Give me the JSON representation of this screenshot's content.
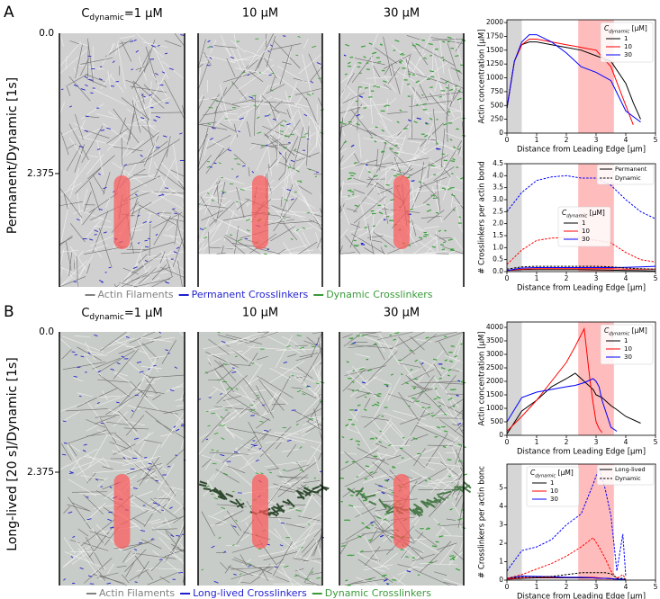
{
  "panels": [
    {
      "label": "A",
      "row_label": "Permanent/Dynamic [1s]",
      "yticks": [
        "0.0",
        "2.375"
      ],
      "columns": [
        {
          "text": "C",
          "sub": "dynamic",
          "rest": "=1 μM"
        },
        {
          "text": "10 μM"
        },
        {
          "text": "30 μM"
        }
      ],
      "legend": [
        {
          "text": "Actin Filaments",
          "color": "#808080"
        },
        {
          "text": "Permanent Crosslinkers",
          "color": "#1f1fd0"
        },
        {
          "text": "Dynamic Crosslinkers",
          "color": "#3a9a3a"
        }
      ]
    },
    {
      "label": "B",
      "row_label": "Long-lived [20 s]/Dynamic [1s]",
      "yticks": [
        "0.0",
        "2.375"
      ],
      "columns": [
        {
          "text": "C",
          "sub": "dynamic",
          "rest": "=1 μM"
        },
        {
          "text": "10 μM"
        },
        {
          "text": "30 μM"
        }
      ],
      "legend": [
        {
          "text": "Actin Filaments",
          "color": "#808080"
        },
        {
          "text": "Long-lived Crosslinkers",
          "color": "#1f1fd0"
        },
        {
          "text": "Dynamic Crosslinkers",
          "color": "#3a9a3a"
        }
      ]
    }
  ],
  "chart_data": [
    {
      "type": "line",
      "xlabel": "Distance from Leading Edge [μm]",
      "ylabel": "Actin concentration [μM]",
      "legend_title": {
        "text": "C",
        "sub": "dynamic",
        "rest": " [μM]"
      },
      "legend_loc": "upper right",
      "xlim": [
        0,
        5
      ],
      "xticks": [
        0,
        1,
        2,
        3,
        4,
        5
      ],
      "ylim": [
        0,
        2050
      ],
      "yticks": [
        0,
        250,
        500,
        750,
        1000,
        1250,
        1500,
        1750,
        2000
      ],
      "shaded": [
        {
          "x": [
            0,
            0.5
          ],
          "color": "#cfcfcf"
        },
        {
          "x": [
            2.4,
            3.6
          ],
          "color": "#ffb0b0"
        }
      ],
      "x": [
        0,
        0.25,
        0.5,
        0.75,
        1,
        1.5,
        2,
        2.5,
        3,
        3.5,
        4,
        4.25,
        4.5
      ],
      "series": [
        {
          "name": "1",
          "color": "#000000",
          "values": [
            450,
            1300,
            1600,
            1650,
            1650,
            1600,
            1550,
            1500,
            1400,
            1300,
            900,
            550,
            250
          ]
        },
        {
          "name": "10",
          "color": "#ff0000",
          "values": [
            450,
            1300,
            1600,
            1700,
            1700,
            1650,
            1600,
            1550,
            1500,
            1200,
            500,
            150,
            null
          ]
        },
        {
          "name": "30",
          "color": "#0000ff",
          "values": [
            450,
            1300,
            1650,
            1780,
            1780,
            1650,
            1450,
            1200,
            1100,
            950,
            400,
            300,
            200
          ]
        }
      ]
    },
    {
      "type": "line",
      "xlabel": "Distance from Leading Edge [μm]",
      "ylabel": "# Crosslinkers per actin bond",
      "legend_title": {
        "text": "C",
        "sub": "dynamic",
        "rest": " [μM]"
      },
      "legend_loc": "center right",
      "style_legend": [
        "Permanent",
        "Dynamic"
      ],
      "xlim": [
        0,
        5
      ],
      "xticks": [
        0,
        1,
        2,
        3,
        4,
        5
      ],
      "ylim": [
        0,
        4.5
      ],
      "yticks": [
        {
          "value": 0,
          "label": "0.0"
        },
        0.5,
        {
          "value": 1,
          "label": "1.0"
        },
        1.5,
        {
          "value": 2,
          "label": "2.0"
        },
        2.5,
        {
          "value": 3,
          "label": "3.0"
        },
        3.5,
        {
          "value": 4,
          "label": "4.0"
        },
        4.5
      ],
      "shaded": [
        {
          "x": [
            0,
            0.5
          ],
          "color": "#cfcfcf"
        },
        {
          "x": [
            2.4,
            3.6
          ],
          "color": "#ffb0b0"
        }
      ],
      "x": [
        0,
        0.5,
        1,
        1.5,
        2,
        2.5,
        3,
        3.5,
        4,
        4.5,
        5
      ],
      "series": [
        {
          "name": "1",
          "color": "#000000",
          "dash": false,
          "values": [
            0.05,
            0.08,
            0.08,
            0.08,
            0.08,
            0.08,
            0.07,
            0.06,
            0.05,
            0.04,
            0.03
          ]
        },
        {
          "name": "10",
          "color": "#ff0000",
          "dash": false,
          "values": [
            0.05,
            0.1,
            0.12,
            0.12,
            0.12,
            0.12,
            0.12,
            0.12,
            0.1,
            0.1,
            0.1
          ]
        },
        {
          "name": "30",
          "color": "#0000ff",
          "dash": false,
          "values": [
            0.05,
            0.15,
            0.17,
            0.17,
            0.17,
            0.17,
            0.17,
            0.17,
            0.18,
            0.2,
            0.22
          ]
        },
        {
          "name": "1",
          "color": "#000000",
          "dash": true,
          "values": [
            0.1,
            0.2,
            0.22,
            0.22,
            0.22,
            0.22,
            0.22,
            0.2,
            0.15,
            0.12,
            0.1
          ]
        },
        {
          "name": "10",
          "color": "#ff0000",
          "dash": true,
          "values": [
            0.3,
            0.9,
            1.3,
            1.4,
            1.42,
            1.4,
            1.3,
            1.2,
            0.8,
            0.5,
            0.4
          ]
        },
        {
          "name": "30",
          "color": "#0000ff",
          "dash": true,
          "values": [
            2.5,
            3.3,
            3.8,
            3.95,
            4.0,
            3.9,
            3.9,
            3.6,
            3.0,
            2.5,
            2.2
          ]
        }
      ]
    },
    {
      "type": "line",
      "xlabel": "Distance from Leading Edge [μm]",
      "ylabel": "Actin concentration [μM]",
      "legend_title": {
        "text": "C",
        "sub": "dynamic",
        "rest": " [μM]"
      },
      "legend_loc": "upper right",
      "xlim": [
        0,
        5
      ],
      "xticks": [
        0,
        1,
        2,
        3,
        4,
        5
      ],
      "ylim": [
        0,
        4200
      ],
      "yticks": [
        0,
        500,
        1000,
        1500,
        2000,
        2500,
        3000,
        3500,
        4000
      ],
      "shaded": [
        {
          "x": [
            0,
            0.5
          ],
          "color": "#cfcfcf"
        },
        {
          "x": [
            2.4,
            3.6
          ],
          "color": "#ffb0b0"
        }
      ],
      "x": [
        0,
        0.5,
        1,
        1.5,
        2,
        2.3,
        2.6,
        2.8,
        2.9,
        3,
        3.1,
        3.2,
        3.5,
        3.7,
        4,
        4.5
      ],
      "series": [
        {
          "name": "1",
          "color": "#000000",
          "values": [
            50,
            900,
            1300,
            1800,
            2100,
            2300,
            2000,
            1800,
            1700,
            1500,
            1450,
            1400,
            1100,
            950,
            700,
            450
          ]
        },
        {
          "name": "10",
          "color": "#ff0000",
          "values": [
            150,
            700,
            1300,
            2000,
            2700,
            3300,
            3950,
            2000,
            1200,
            500,
            250,
            100,
            null,
            null,
            null,
            null
          ]
        },
        {
          "name": "30",
          "color": "#0000ff",
          "values": [
            500,
            1400,
            1600,
            1700,
            1800,
            1850,
            1950,
            2050,
            2100,
            2000,
            1800,
            1300,
            300,
            150,
            null,
            null
          ]
        }
      ]
    },
    {
      "type": "line",
      "xlabel": "Distance from Leading Edge [μm]",
      "ylabel": "# Crosslinkers per actin bonc",
      "legend_title": {
        "text": "C",
        "sub": "dynamic",
        "rest": " [μM]"
      },
      "legend_loc": "upper left",
      "style_legend": [
        "Long-lived",
        "Dynamic"
      ],
      "xlim": [
        0,
        5
      ],
      "xticks": [
        0,
        1,
        2,
        3,
        4,
        5
      ],
      "ylim": [
        0,
        6.3
      ],
      "yticks": [
        0,
        1,
        2,
        3,
        4,
        5
      ],
      "shaded": [
        {
          "x": [
            0,
            0.5
          ],
          "color": "#cfcfcf"
        },
        {
          "x": [
            2.4,
            3.6
          ],
          "color": "#ffb0b0"
        }
      ],
      "x": [
        0,
        0.5,
        1,
        1.5,
        2,
        2.5,
        2.9,
        3.1,
        3.3,
        3.5,
        3.7,
        3.9,
        4
      ],
      "series": [
        {
          "name": "1",
          "color": "#000000",
          "dash": false,
          "values": [
            0.05,
            0.1,
            0.12,
            0.12,
            0.12,
            0.12,
            0.12,
            0.1,
            0.1,
            0.08,
            0.05,
            0.03,
            0.02
          ]
        },
        {
          "name": "10",
          "color": "#ff0000",
          "dash": false,
          "values": [
            0.05,
            0.12,
            0.15,
            0.15,
            0.15,
            0.15,
            0.15,
            0.12,
            0.1,
            0.08,
            0.05,
            0.03,
            0.02
          ]
        },
        {
          "name": "30",
          "color": "#0000ff",
          "dash": false,
          "values": [
            0.1,
            0.22,
            0.2,
            0.18,
            0.15,
            0.15,
            0.12,
            0.1,
            0.1,
            0.08,
            0.05,
            0.05,
            0.02
          ]
        },
        {
          "name": "1",
          "color": "#000000",
          "dash": true,
          "values": [
            0.1,
            0.15,
            0.15,
            0.2,
            0.3,
            0.4,
            0.4,
            0.4,
            0.4,
            0.35,
            0.1,
            0.1,
            0.05
          ]
        },
        {
          "name": "10",
          "color": "#ff0000",
          "dash": true,
          "values": [
            0.1,
            0.3,
            0.6,
            0.9,
            1.3,
            1.8,
            2.3,
            1.8,
            1.2,
            0.5,
            0.1,
            0.3,
            0.05
          ]
        },
        {
          "name": "30",
          "color": "#0000ff",
          "dash": true,
          "values": [
            0.5,
            1.6,
            1.8,
            2.2,
            3.0,
            3.6,
            5.2,
            6.1,
            5.0,
            3.5,
            0.5,
            2.5,
            0.2
          ]
        }
      ]
    }
  ]
}
